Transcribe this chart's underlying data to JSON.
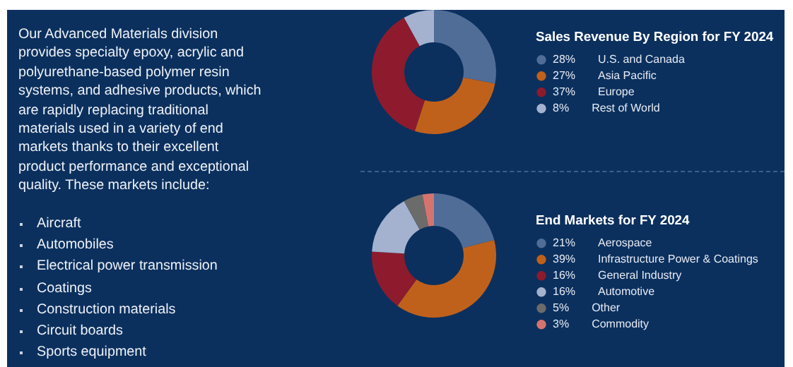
{
  "chart_data": [
    {
      "type": "other",
      "annotations": [
        "Our Advanced Materials division provides specialty epoxy, acrylic and polyurethane-based polymer resin systems, and adhesive products, which are rapidly replacing traditional materials used in a variety of end markets thanks to their excellent product performance and exceptional quality. These markets include:",
        "Aircraft",
        "Automobiles",
        "Electrical power transmission",
        "Coatings",
        "Construction materials",
        "Circuit boards",
        "Sports equipment"
      ]
    },
    {
      "type": "donut",
      "title": "Sales Revenue By Region for FY 2024",
      "legend": "right",
      "categories": [
        "U.S. and Canada",
        "Asia Pacific",
        "Europe",
        "Rest of World"
      ],
      "values": [
        28,
        27,
        37,
        8
      ],
      "value_labels": [
        "28%",
        "27%",
        "37%",
        "8%"
      ],
      "colors": [
        "#506d98",
        "#c0611b",
        "#8d1b2d",
        "#a4b2d0"
      ]
    },
    {
      "type": "donut",
      "title": "End Markets for FY 2024",
      "legend": "right",
      "categories": [
        "Aerospace",
        "Infrastructure Power & Coatings",
        "General Industry",
        "Automotive",
        "Other",
        "Commodity"
      ],
      "values": [
        21,
        39,
        16,
        16,
        5,
        3
      ],
      "value_labels": [
        "21%",
        "39%",
        "16%",
        "16%",
        "5%",
        "3%"
      ],
      "colors": [
        "#506d98",
        "#c0611b",
        "#8d1b2d",
        "#a4b2d0",
        "#6b6b6b",
        "#d5746f"
      ]
    }
  ]
}
